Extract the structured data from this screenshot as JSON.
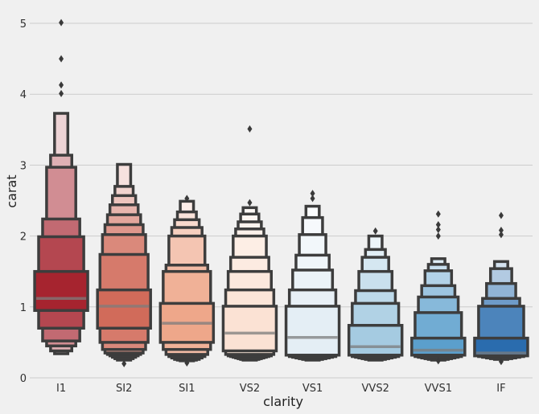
{
  "chart_data": {
    "type": "boxen",
    "xlabel": "clarity",
    "ylabel": "carat",
    "ylim": [
      0,
      5.3
    ],
    "yticks": [
      0,
      1,
      2,
      3,
      4,
      5
    ],
    "grid": true,
    "categories": [
      "I1",
      "SI2",
      "SI1",
      "VS2",
      "VS1",
      "VVS2",
      "VVS1",
      "IF"
    ],
    "colors": [
      "#a6242f",
      "#d16b5a",
      "#eea78a",
      "#fbe2d4",
      "#e4eef5",
      "#a5cbe1",
      "#5b9fcc",
      "#2a6cae"
    ],
    "series": [
      {
        "category": "I1",
        "median": 1.12,
        "boxes": [
          [
            0.95,
            1.5
          ],
          [
            0.7,
            1.99
          ],
          [
            0.52,
            2.24
          ],
          [
            0.45,
            2.97
          ],
          [
            0.38,
            3.14
          ],
          [
            0.34,
            3.73
          ]
        ],
        "outliers": [
          4.01,
          4.13,
          4.5,
          5.01
        ]
      },
      {
        "category": "SI2",
        "median": 1.01,
        "boxes": [
          [
            0.7,
            1.24
          ],
          [
            0.5,
            1.74
          ],
          [
            0.4,
            2.02
          ],
          [
            0.35,
            2.16
          ],
          [
            0.33,
            2.3
          ],
          [
            0.31,
            2.44
          ],
          [
            0.29,
            2.57
          ],
          [
            0.27,
            2.7
          ],
          [
            0.25,
            3.01
          ]
        ],
        "outliers": [
          0.2
        ]
      },
      {
        "category": "SI1",
        "median": 0.77,
        "boxes": [
          [
            0.5,
            1.05
          ],
          [
            0.4,
            1.5
          ],
          [
            0.33,
            1.59
          ],
          [
            0.3,
            2.0
          ],
          [
            0.28,
            2.12
          ],
          [
            0.26,
            2.23
          ],
          [
            0.25,
            2.34
          ],
          [
            0.24,
            2.49
          ]
        ],
        "outliers": [
          0.21,
          2.53
        ]
      },
      {
        "category": "VS2",
        "median": 0.63,
        "boxes": [
          [
            0.38,
            1.01
          ],
          [
            0.33,
            1.24
          ],
          [
            0.31,
            1.5
          ],
          [
            0.3,
            1.7
          ],
          [
            0.29,
            2.0
          ],
          [
            0.28,
            2.1
          ],
          [
            0.27,
            2.2
          ],
          [
            0.26,
            2.31
          ],
          [
            0.25,
            2.4
          ]
        ],
        "outliers": [
          2.47,
          3.51
        ]
      },
      {
        "category": "VS1",
        "median": 0.57,
        "boxes": [
          [
            0.32,
            1.01
          ],
          [
            0.3,
            1.24
          ],
          [
            0.29,
            1.52
          ],
          [
            0.28,
            1.73
          ],
          [
            0.27,
            2.02
          ],
          [
            0.26,
            2.26
          ],
          [
            0.25,
            2.42
          ]
        ],
        "outliers": [
          2.53,
          2.6
        ]
      },
      {
        "category": "VVS2",
        "median": 0.44,
        "boxes": [
          [
            0.32,
            0.74
          ],
          [
            0.3,
            1.05
          ],
          [
            0.29,
            1.23
          ],
          [
            0.28,
            1.5
          ],
          [
            0.27,
            1.7
          ],
          [
            0.26,
            1.81
          ],
          [
            0.25,
            2.0
          ]
        ],
        "outliers": [
          2.07
        ]
      },
      {
        "category": "VVS1",
        "median": 0.39,
        "boxes": [
          [
            0.32,
            0.56
          ],
          [
            0.3,
            0.92
          ],
          [
            0.29,
            1.14
          ],
          [
            0.28,
            1.3
          ],
          [
            0.27,
            1.51
          ],
          [
            0.26,
            1.6
          ],
          [
            0.25,
            1.68
          ]
        ],
        "outliers": [
          0.24,
          2.0,
          2.09,
          2.16,
          2.31
        ]
      },
      {
        "category": "IF",
        "median": 0.35,
        "boxes": [
          [
            0.31,
            0.56
          ],
          [
            0.3,
            1.01
          ],
          [
            0.29,
            1.12
          ],
          [
            0.28,
            1.33
          ],
          [
            0.27,
            1.54
          ],
          [
            0.26,
            1.64
          ]
        ],
        "outliers": [
          0.23,
          2.02,
          2.08,
          2.29
        ]
      }
    ]
  }
}
